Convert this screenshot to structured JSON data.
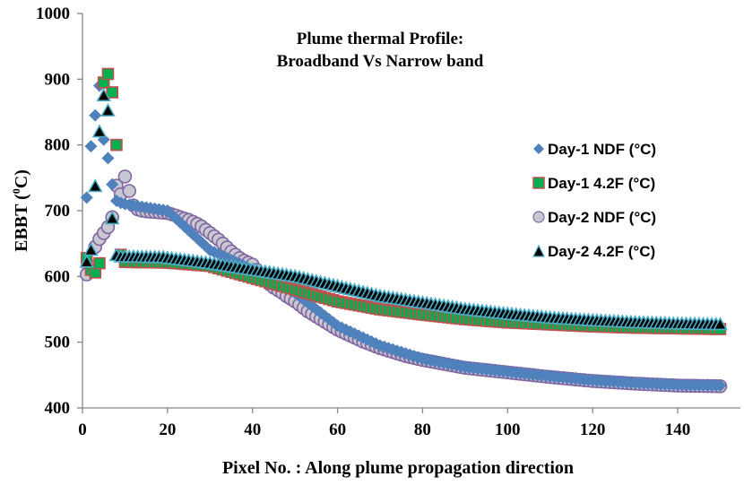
{
  "chart_data": {
    "type": "scatter",
    "title_line1": "Plume thermal Profile:",
    "title_line2": "Broadband Vs Narrow band",
    "xlabel": "Pixel No. : Along plume propagation direction",
    "ylabel_main": "EBBT (",
    "ylabel_sup": "0",
    "ylabel_end": "C)",
    "xlim": [
      0,
      150
    ],
    "ylim": [
      400,
      1000
    ],
    "xticks": [
      "0",
      "20",
      "40",
      "60",
      "80",
      "100",
      "120",
      "140"
    ],
    "xtick_values": [
      0,
      20,
      40,
      60,
      80,
      100,
      120,
      140
    ],
    "yticks": [
      "400",
      "500",
      "600",
      "700",
      "800",
      "900",
      "1000"
    ],
    "ytick_values": [
      400,
      500,
      600,
      700,
      800,
      900,
      1000
    ],
    "grid": false,
    "legend_position": "right",
    "series": [
      {
        "name": "Day-1 NDF (°C)",
        "marker": "diamond",
        "fill": "#4F81BD",
        "stroke": "#4F81BD",
        "x_start": 1,
        "values": [
          720,
          798,
          845,
          890,
          808,
          780,
          740,
          715,
          712,
          710,
          709,
          708,
          707,
          706,
          705,
          704,
          703,
          702,
          701,
          700,
          694,
          688,
          682,
          676,
          670,
          664,
          658,
          652,
          646,
          640,
          637,
          634,
          631,
          628,
          625,
          622,
          619,
          616,
          613,
          610,
          606.5,
          603,
          599.5,
          596,
          592.5,
          589,
          585.5,
          582,
          578.5,
          575,
          570,
          565,
          560,
          555,
          550,
          545,
          540,
          535,
          530,
          525,
          522,
          519,
          516,
          513,
          510,
          507,
          504,
          501,
          498,
          495,
          493,
          491,
          489,
          487,
          485,
          483,
          481,
          479,
          477,
          475,
          473.7,
          472.4,
          471.1,
          469.8,
          468.5,
          467.2,
          465.9,
          464.6,
          463.3,
          462,
          461.3,
          460.6,
          459.9,
          459.2,
          458.5,
          457.8,
          457.1,
          456.4,
          455.7,
          455,
          454.3,
          453.6,
          452.9,
          452.2,
          451.5,
          450.8,
          450.1,
          449.4,
          448.7,
          448,
          447.4,
          446.8,
          446.2,
          445.6,
          445,
          444.4,
          443.8,
          443.2,
          442.6,
          442,
          441.6,
          441.2,
          440.8,
          440.4,
          440,
          439.6,
          439.2,
          438.8,
          438.4,
          438,
          437.7,
          437.4,
          437.1,
          436.8,
          436.5,
          436.2,
          435.9,
          435.6,
          435.3,
          435,
          434.9,
          434.8,
          434.7,
          434.6,
          434.5,
          434.4,
          434.3,
          434.2,
          434.1,
          434
        ]
      },
      {
        "name": "Day-1 4.2F  (°C)",
        "marker": "square",
        "fill": "#00B050",
        "stroke": "#C0504D",
        "x_start": 1,
        "values": [
          628,
          610,
          606,
          620,
          895,
          908,
          880,
          800,
          633,
          622,
          621.9,
          621.8,
          621.7,
          621.6,
          621.5,
          621.4,
          621.3,
          621.2,
          621.1,
          621,
          620.5,
          620,
          619.5,
          619,
          618.5,
          618,
          617.5,
          617,
          616.5,
          616,
          614.2,
          612.4,
          610.6,
          608.8,
          607,
          605.2,
          603.4,
          601.6,
          599.8,
          598,
          596.2,
          594.4,
          592.6,
          590.8,
          589,
          587.2,
          585.4,
          583.6,
          581.8,
          580,
          578.2,
          576.4,
          574.6,
          572.8,
          571,
          569.2,
          567.4,
          565.6,
          563.8,
          562,
          560.8,
          559.6,
          558.4,
          557.2,
          556,
          554.8,
          553.6,
          552.4,
          551.2,
          550,
          549.2,
          548.4,
          547.6,
          546.8,
          546,
          545.2,
          544.4,
          543.6,
          542.8,
          542,
          541.3,
          540.6,
          539.9,
          539.2,
          538.5,
          537.8,
          537.1,
          536.4,
          535.7,
          535,
          534.5,
          534,
          533.5,
          533,
          532.5,
          532,
          531.5,
          531,
          530.5,
          530,
          529.7,
          529.4,
          529.1,
          528.8,
          528.5,
          528.2,
          527.9,
          527.6,
          527.3,
          527,
          526.7,
          526.4,
          526.1,
          525.8,
          525.5,
          525.2,
          524.9,
          524.6,
          524.3,
          524,
          523.8,
          523.6,
          523.4,
          523.2,
          523,
          522.8,
          522.6,
          522.4,
          522.2,
          522,
          521.9,
          521.8,
          521.7,
          521.6,
          521.5,
          521.4,
          521.3,
          521.2,
          521.1,
          521,
          520.9,
          520.8,
          520.7,
          520.6,
          520.5,
          520.4,
          520.3,
          520.2,
          520.1,
          520
        ]
      },
      {
        "name": "Day-2 NDF  (°C)",
        "marker": "circle",
        "fill": "#C8C8D0",
        "stroke": "#8064A2",
        "x_start": 1,
        "values": [
          603,
          615,
          645,
          657,
          666,
          675,
          690,
          738,
          725,
          752,
          730,
          708,
          702,
          700,
          699,
          698.5,
          698,
          697.5,
          697,
          696.5,
          694.5,
          692.5,
          690,
          688,
          686,
          683,
          680,
          676,
          671,
          666,
          661,
          656,
          650,
          644,
          638,
          633,
          628,
          624,
          621,
          618,
          610,
          602,
          595,
          588,
          583,
          579,
          575,
          570,
          566,
          562,
          557,
          552,
          547,
          543,
          539,
          535,
          531,
          527,
          523,
          519,
          516,
          513,
          510,
          507,
          504,
          501,
          498.5,
          496,
          493.5,
          491,
          489,
          487,
          485,
          483,
          481,
          479,
          477.5,
          476,
          474.5,
          473,
          471.8,
          470.6,
          469.4,
          468.2,
          467,
          465.8,
          464.6,
          463.4,
          462.2,
          461,
          460.3,
          459.6,
          458.9,
          458.2,
          457.5,
          456.8,
          456.1,
          455.4,
          454.7,
          454,
          453.3,
          452.6,
          451.9,
          451.2,
          450.5,
          449.8,
          449.1,
          448.4,
          447.7,
          447,
          446.4,
          445.8,
          445.2,
          444.6,
          444,
          443.4,
          442.8,
          442.2,
          441.6,
          441,
          440.6,
          440.2,
          439.8,
          439.4,
          439,
          438.6,
          438.2,
          437.8,
          437.4,
          437,
          436.7,
          436.4,
          436.1,
          435.8,
          435.5,
          435.2,
          434.9,
          434.6,
          434.3,
          434,
          433.9,
          433.8,
          433.7,
          433.6,
          433.5,
          433.4,
          433.3,
          433.2,
          433.1,
          433
        ]
      },
      {
        "name": "Day-2 4.2F  (°C)",
        "marker": "triangle",
        "fill": "#000000",
        "stroke": "#4BACC6",
        "x_start": 1,
        "values": [
          622,
          640,
          737,
          820,
          875,
          852,
          688,
          632,
          630,
          629.9,
          629.8,
          629.7,
          629.6,
          629.5,
          629.4,
          629.3,
          629.2,
          629.1,
          629,
          628,
          627.2,
          626.4,
          625.6,
          624.8,
          624,
          623.2,
          622.4,
          621.6,
          620.8,
          620,
          619,
          618,
          617,
          616,
          615,
          614,
          613,
          612,
          611,
          610,
          609,
          608,
          607,
          606,
          605,
          604,
          603,
          602,
          601,
          600,
          598.5,
          597,
          595.5,
          594,
          592.5,
          591,
          589.5,
          588,
          586.5,
          585,
          583.5,
          582,
          580.5,
          579,
          577.5,
          576,
          574.5,
          573,
          571.5,
          570,
          569,
          568,
          567,
          566,
          565,
          564,
          563,
          562,
          561,
          560,
          559,
          558,
          557,
          556,
          555,
          554,
          553,
          552,
          551,
          550,
          549.3,
          548.6,
          547.9,
          547.2,
          546.5,
          545.8,
          545.1,
          544.4,
          543.7,
          543,
          542.4,
          541.8,
          541.2,
          540.6,
          540,
          539.4,
          538.8,
          538.2,
          537.6,
          537,
          536.6,
          536.2,
          535.8,
          535.4,
          535,
          534.6,
          534.2,
          533.8,
          533.4,
          533,
          532.7,
          532.4,
          532.1,
          531.8,
          531.5,
          531.2,
          530.9,
          530.6,
          530.3,
          530,
          529.8,
          529.6,
          529.4,
          529.2,
          529,
          528.8,
          528.6,
          528.4,
          528.2,
          528,
          527.9,
          527.8,
          527.7,
          527.6,
          527.5,
          527.4,
          527.3,
          527.2,
          527.1,
          527
        ]
      }
    ]
  }
}
